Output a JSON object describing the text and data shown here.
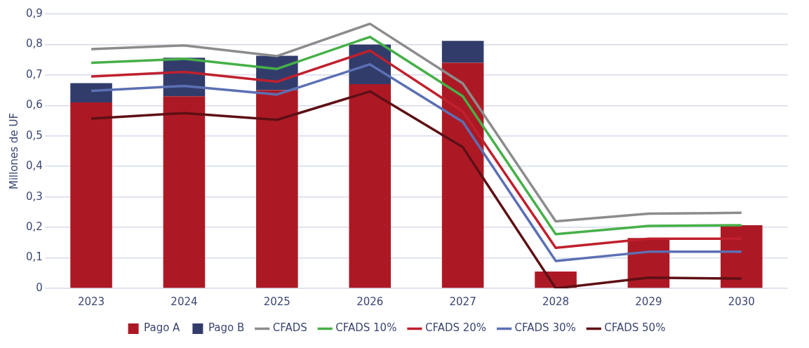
{
  "chart_data": {
    "type": "bar",
    "stacked": true,
    "ylabel": "Millones de UF",
    "categories": [
      "2023",
      "2024",
      "2025",
      "2026",
      "2027",
      "2028",
      "2029",
      "2030"
    ],
    "series": [
      {
        "name": "Pago A",
        "color": "#ac1924",
        "values": [
          0.61,
          0.63,
          0.65,
          0.67,
          0.74,
          0.055,
          0.165,
          0.207
        ]
      },
      {
        "name": "Pago B",
        "color": "#323c6b",
        "values": [
          0.063,
          0.127,
          0.113,
          0.13,
          0.072,
          null,
          null,
          null
        ]
      },
      {
        "name": "CFADS",
        "type": "line",
        "color": "#8c8c8c",
        "values": [
          0.785,
          0.797,
          0.762,
          0.868,
          0.672,
          0.22,
          0.245,
          0.248
        ]
      },
      {
        "name": "CFADS 10%",
        "type": "line",
        "color": "#46b048",
        "values": [
          0.74,
          0.753,
          0.72,
          0.825,
          0.63,
          0.178,
          0.205,
          0.207
        ]
      },
      {
        "name": "CFADS 20%",
        "type": "line",
        "color": "#c0202d",
        "values": [
          0.695,
          0.71,
          0.678,
          0.78,
          0.58,
          0.133,
          0.163,
          0.163
        ]
      },
      {
        "name": "CFADS 30%",
        "type": "line",
        "color": "#5b70b4",
        "values": [
          0.648,
          0.664,
          0.636,
          0.735,
          0.546,
          0.09,
          0.12,
          0.12
        ]
      },
      {
        "name": "CFADS 50%",
        "type": "line",
        "color": "#5e0f15",
        "values": [
          0.557,
          0.575,
          0.553,
          0.646,
          0.463,
          0.0,
          0.035,
          0.032
        ]
      }
    ],
    "ylim": [
      0,
      0.9
    ],
    "yticks": [
      0,
      {
        "value": 0.1,
        "label": "0,1"
      },
      {
        "value": 0.2,
        "label": "0,2"
      },
      {
        "value": 0.3,
        "label": "0,3"
      },
      {
        "value": 0.4,
        "label": "0,4"
      },
      {
        "value": 0.5,
        "label": "0,5"
      },
      {
        "value": 0.6,
        "label": "0,6"
      },
      {
        "value": 0.7,
        "label": "0,7"
      },
      {
        "value": 0.8,
        "label": "0,8"
      },
      {
        "value": 0.9,
        "label": "0,9"
      }
    ],
    "grid": "y",
    "legend": "bottom",
    "marker": "none",
    "line_style": "solid"
  }
}
